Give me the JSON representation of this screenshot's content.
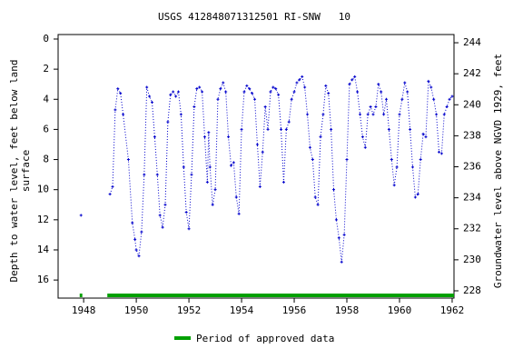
{
  "chart_data": {
    "type": "line",
    "title": "USGS 412848071312501 RI-SNW   10",
    "ylabel": [
      "Depth to water level, feet below land",
      "surface"
    ],
    "y2label": "Groundwater level above NGVD 1929, feet",
    "xlim": [
      1947.03,
      1962.07
    ],
    "xticks": [
      1948,
      1950,
      1952,
      1954,
      1956,
      1958,
      1960,
      1962
    ],
    "ylim": [
      -0.3,
      17.2
    ],
    "yticks": [
      0,
      2,
      4,
      6,
      8,
      10,
      12,
      14,
      16
    ],
    "y_inverted": true,
    "y2lim": [
      244.53,
      227.53
    ],
    "y2ticks": [
      228,
      230,
      232,
      234,
      236,
      238,
      240,
      242,
      244
    ],
    "series": [
      {
        "name": "Depth to water level",
        "color": "#0000cc",
        "x": [
          1947.9,
          1948.5,
          1949.0,
          1949.1,
          1949.2,
          1949.3,
          1949.4,
          1949.5,
          1949.7,
          1949.85,
          1949.95,
          1950.0,
          1950.1,
          1950.2,
          1950.3,
          1950.4,
          1950.5,
          1950.6,
          1950.7,
          1950.8,
          1950.9,
          1951.0,
          1951.1,
          1951.2,
          1951.3,
          1951.4,
          1951.5,
          1951.6,
          1951.7,
          1951.8,
          1951.9,
          1952.0,
          1952.1,
          1952.2,
          1952.3,
          1952.4,
          1952.5,
          1952.6,
          1952.7,
          1952.75,
          1952.8,
          1952.9,
          1953.0,
          1953.1,
          1953.2,
          1953.3,
          1953.4,
          1953.5,
          1953.6,
          1953.7,
          1953.8,
          1953.9,
          1954.0,
          1954.1,
          1954.2,
          1954.3,
          1954.4,
          1954.5,
          1954.6,
          1954.7,
          1954.8,
          1954.9,
          1955.0,
          1955.1,
          1955.2,
          1955.3,
          1955.4,
          1955.5,
          1955.6,
          1955.7,
          1955.8,
          1955.9,
          1956.0,
          1956.1,
          1956.2,
          1956.3,
          1956.4,
          1956.5,
          1956.6,
          1956.7,
          1956.8,
          1956.9,
          1957.0,
          1957.1,
          1957.2,
          1957.3,
          1957.4,
          1957.5,
          1957.6,
          1957.7,
          1957.8,
          1957.9,
          1958.0,
          1958.1,
          1958.2,
          1958.3,
          1958.4,
          1958.5,
          1958.6,
          1958.7,
          1958.8,
          1958.9,
          1959.0,
          1959.1,
          1959.2,
          1959.3,
          1959.4,
          1959.5,
          1959.6,
          1959.7,
          1959.8,
          1959.9,
          1960.0,
          1960.1,
          1960.2,
          1960.3,
          1960.4,
          1960.5,
          1960.6,
          1960.7,
          1960.8,
          1960.9,
          1961.0,
          1961.1,
          1961.2,
          1961.3,
          1961.4,
          1961.5,
          1961.6,
          1961.7,
          1961.8,
          1961.9,
          1962.0
        ],
        "values": [
          11.7,
          null,
          10.3,
          9.8,
          4.7,
          3.3,
          3.6,
          5.0,
          8.0,
          12.2,
          13.3,
          14.0,
          14.4,
          12.8,
          9.0,
          3.2,
          3.8,
          4.2,
          6.5,
          9.0,
          11.7,
          12.5,
          11.0,
          5.5,
          3.7,
          3.5,
          3.8,
          3.5,
          5.0,
          8.5,
          11.5,
          12.6,
          9.0,
          4.5,
          3.3,
          3.2,
          3.5,
          6.5,
          9.5,
          6.2,
          8.5,
          11.0,
          10.0,
          4.0,
          3.3,
          2.9,
          3.5,
          6.5,
          8.4,
          8.2,
          10.5,
          11.6,
          6.0,
          3.5,
          3.1,
          3.3,
          3.6,
          4.0,
          7.0,
          9.8,
          7.5,
          4.5,
          6.0,
          3.5,
          3.2,
          3.3,
          3.7,
          6.0,
          9.5,
          6.0,
          5.5,
          4.0,
          3.5,
          2.9,
          2.7,
          2.5,
          3.2,
          5.0,
          7.2,
          8.0,
          10.5,
          11.0,
          6.5,
          5.0,
          3.1,
          3.6,
          6.0,
          10.0,
          12.0,
          13.2,
          14.8,
          13.0,
          8.0,
          3.0,
          2.7,
          2.5,
          3.5,
          5.0,
          6.5,
          7.2,
          5.0,
          4.5,
          5.0,
          4.5,
          3.0,
          3.5,
          5.0,
          4.0,
          6.0,
          8.0,
          9.7,
          8.5,
          5.0,
          4.0,
          2.9,
          3.5,
          6.0,
          8.5,
          10.5,
          10.3,
          8.0,
          6.3,
          6.5,
          2.8,
          3.2,
          4.0,
          5.0,
          7.5,
          7.6,
          5.0,
          4.5,
          4.0,
          3.8
        ]
      }
    ],
    "approved_periods": {
      "name": "Period of approved data",
      "color": "#00a000",
      "ranges": [
        [
          1947.85,
          1947.95
        ],
        [
          1948.9,
          1962.07
        ]
      ]
    }
  }
}
